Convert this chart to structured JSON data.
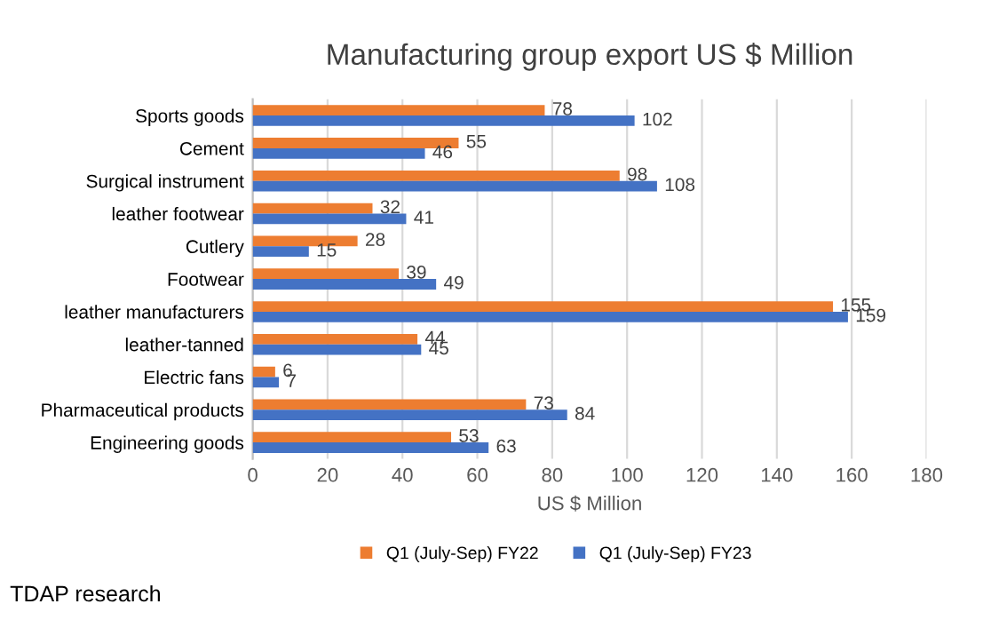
{
  "chart_data": {
    "type": "bar",
    "orientation": "horizontal",
    "title": "Manufacturing group export US $ Million",
    "xlabel": "US $ Million",
    "categories": [
      "Sports goods",
      "Cement",
      "Surgical instrument",
      "leather footwear",
      "Cutlery",
      "Footwear",
      "leather manufacturers",
      "leather-tanned",
      "Electric fans",
      "Pharmaceutical products",
      "Engineering goods"
    ],
    "series": [
      {
        "name": "Q1 (July-Sep) FY22",
        "color": "#ed7d31",
        "values": [
          78,
          55,
          98,
          32,
          28,
          39,
          155,
          44,
          6,
          73,
          53
        ]
      },
      {
        "name": "Q1 (July-Sep) FY23",
        "color": "#4472c4",
        "values": [
          102,
          46,
          108,
          41,
          15,
          49,
          159,
          45,
          7,
          84,
          63
        ]
      }
    ],
    "xlim": [
      0,
      180
    ],
    "xticks": [
      0,
      20,
      40,
      60,
      80,
      100,
      120,
      140,
      160,
      180
    ],
    "grid": "x",
    "legend": "bottom",
    "data_labels": true,
    "annotations": [
      "TDAP research"
    ]
  }
}
